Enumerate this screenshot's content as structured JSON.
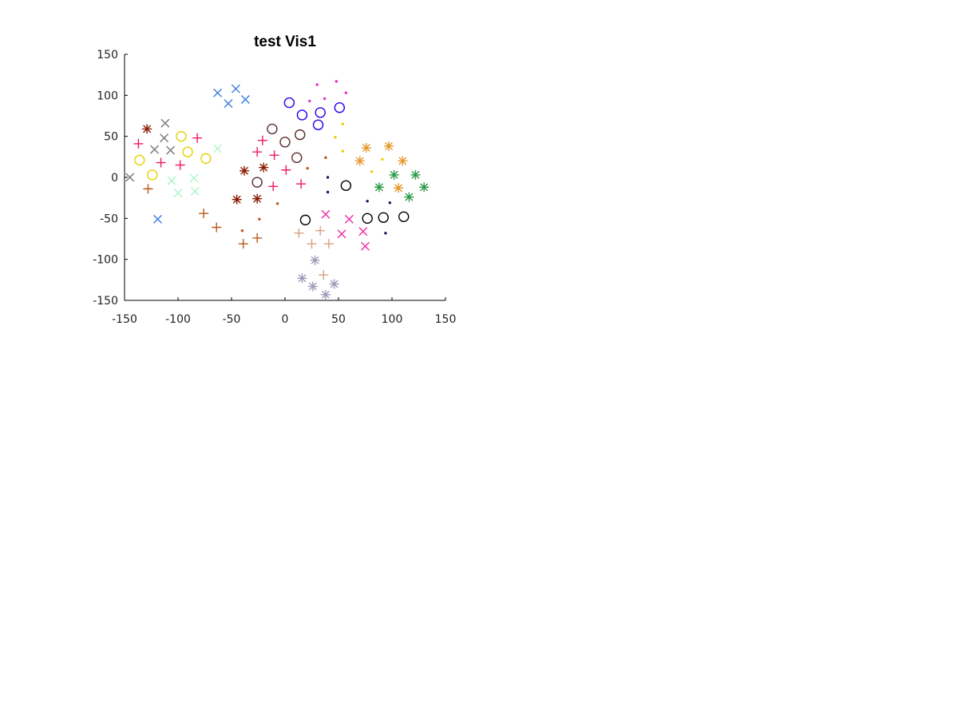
{
  "chart_data": {
    "type": "scatter",
    "title": "test Vis1",
    "xlabel": "",
    "ylabel": "",
    "xlim": [
      -150,
      150
    ],
    "ylim": [
      -150,
      150
    ],
    "x_ticks": [
      "-150",
      "-100",
      "-50",
      "0",
      "50",
      "100",
      "150"
    ],
    "y_ticks": [
      "150",
      "100",
      "50",
      "0",
      "-50",
      "-100",
      "-150"
    ],
    "grid": false,
    "legend": "none",
    "series": [
      {
        "marker": "x",
        "color": "#3a7de0",
        "points": [
          [
            -63,
            103
          ],
          [
            -46,
            108
          ],
          [
            -53,
            90
          ],
          [
            -37,
            95
          ],
          [
            -119,
            -51
          ]
        ]
      },
      {
        "marker": "x",
        "color": "#777777",
        "points": [
          [
            -112,
            66
          ],
          [
            -113,
            48
          ],
          [
            -122,
            34
          ],
          [
            -107,
            33
          ],
          [
            -145,
            0
          ]
        ]
      },
      {
        "marker": "x",
        "color": "#aaf5c8",
        "points": [
          [
            -63,
            35
          ],
          [
            -106,
            -4
          ],
          [
            -100,
            -19
          ],
          [
            -85,
            -1
          ],
          [
            -84,
            -17
          ]
        ]
      },
      {
        "marker": "x",
        "color": "#f02ca8",
        "points": [
          [
            38,
            -45
          ],
          [
            60,
            -51
          ],
          [
            53,
            -69
          ],
          [
            73,
            -66
          ],
          [
            75,
            -84
          ]
        ]
      },
      {
        "marker": "*",
        "color": "#8b1a00",
        "points": [
          [
            -129,
            59
          ],
          [
            -38,
            8
          ],
          [
            -20,
            12
          ],
          [
            -45,
            -27
          ],
          [
            -26,
            -26
          ]
        ]
      },
      {
        "marker": "*",
        "color": "#e8962a",
        "points": [
          [
            70,
            20
          ],
          [
            76,
            36
          ],
          [
            97,
            38
          ],
          [
            110,
            20
          ],
          [
            106,
            -13
          ]
        ]
      },
      {
        "marker": "*",
        "color": "#2a9a48",
        "points": [
          [
            88,
            -12
          ],
          [
            102,
            3
          ],
          [
            122,
            3
          ],
          [
            130,
            -12
          ],
          [
            116,
            -24
          ]
        ]
      },
      {
        "marker": "*",
        "color": "#a09ab8",
        "points": [
          [
            28,
            -101
          ],
          [
            16,
            -123
          ],
          [
            26,
            -133
          ],
          [
            46,
            -130
          ],
          [
            38,
            -143
          ]
        ]
      },
      {
        "marker": "+",
        "color": "#f0186a",
        "points": [
          [
            -137,
            41
          ],
          [
            -116,
            18
          ],
          [
            -98,
            15
          ],
          [
            -82,
            48
          ],
          [
            -26,
            31
          ],
          [
            -21,
            45
          ],
          [
            -10,
            27
          ],
          [
            -11,
            -11
          ],
          [
            1,
            9
          ],
          [
            15,
            -8
          ]
        ]
      },
      {
        "marker": "+",
        "color": "#b85a1e",
        "points": [
          [
            -128,
            -14
          ],
          [
            -76,
            -44
          ],
          [
            -64,
            -61
          ],
          [
            -39,
            -81
          ],
          [
            -26,
            -74
          ]
        ]
      },
      {
        "marker": "+",
        "color": "#d8a080",
        "points": [
          [
            13,
            -68
          ],
          [
            33,
            -65
          ],
          [
            25,
            -81
          ],
          [
            36,
            -119
          ],
          [
            41,
            -81
          ]
        ]
      },
      {
        "marker": "o",
        "color": "#e8d000",
        "points": [
          [
            -97,
            50
          ],
          [
            -91,
            31
          ],
          [
            -136,
            21
          ],
          [
            -74,
            23
          ],
          [
            -124,
            3
          ]
        ]
      },
      {
        "marker": "o",
        "color": "#2200ee",
        "points": [
          [
            4,
            91
          ],
          [
            16,
            76
          ],
          [
            33,
            79
          ],
          [
            31,
            64
          ],
          [
            51,
            85
          ]
        ]
      },
      {
        "marker": "o",
        "color": "#5a2a2a",
        "points": [
          [
            -12,
            59
          ],
          [
            0,
            43
          ],
          [
            14,
            52
          ],
          [
            11,
            24
          ],
          [
            -26,
            -6
          ]
        ]
      },
      {
        "marker": "o",
        "color": "#000000",
        "points": [
          [
            57,
            -10
          ],
          [
            19,
            -52
          ],
          [
            77,
            -50
          ],
          [
            92,
            -49
          ],
          [
            111,
            -48
          ]
        ]
      },
      {
        "marker": ".",
        "color": "#f02cc8",
        "points": [
          [
            30,
            113
          ],
          [
            48,
            117
          ],
          [
            57,
            103
          ],
          [
            23,
            93
          ],
          [
            37,
            96
          ]
        ]
      },
      {
        "marker": ".",
        "color": "#e8d000",
        "points": [
          [
            54,
            65
          ],
          [
            47,
            49
          ],
          [
            54,
            32
          ],
          [
            81,
            7
          ],
          [
            91,
            22
          ]
        ]
      },
      {
        "marker": ".",
        "color": "#b85a1e",
        "points": [
          [
            -40,
            -65
          ],
          [
            -24,
            -51
          ],
          [
            -7,
            -32
          ],
          [
            21,
            11
          ],
          [
            38,
            24
          ]
        ]
      },
      {
        "marker": ".",
        "color": "#0a1a5a",
        "points": [
          [
            40,
            0
          ],
          [
            40,
            -18
          ],
          [
            77,
            -29
          ],
          [
            98,
            -31
          ],
          [
            94,
            -68
          ]
        ]
      }
    ]
  }
}
